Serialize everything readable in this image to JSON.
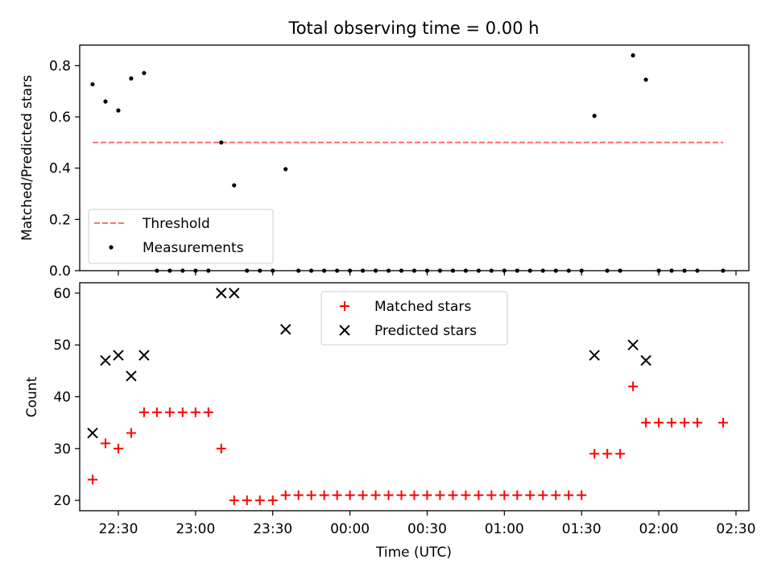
{
  "chart_data": [
    {
      "type": "scatter",
      "title": "Total observing time = 0.00 h",
      "xlabel": "",
      "ylabel": "Matched/Predicted stars",
      "xlim": [
        "22:15",
        "02:35"
      ],
      "ylim": [
        0,
        0.88
      ],
      "yticks": [
        0.0,
        0.2,
        0.4,
        0.6,
        0.8
      ],
      "ytick_labels": [
        "0.0",
        "0.2",
        "0.4",
        "0.6",
        "0.8"
      ],
      "grid": false,
      "legend": {
        "placement": "lower-left",
        "entries": [
          "Threshold",
          "Measurements"
        ]
      },
      "threshold": {
        "name": "Threshold",
        "value": 0.5,
        "x_start": "22:20",
        "x_end": "02:25",
        "color": "#ff7070",
        "style": "dashed"
      },
      "series": [
        {
          "name": "Measurements",
          "color": "#000000",
          "marker": "dot",
          "points": [
            [
              "22:20",
              0.727
            ],
            [
              "22:25",
              0.66
            ],
            [
              "22:30",
              0.625
            ],
            [
              "22:35",
              0.75
            ],
            [
              "22:40",
              0.771
            ],
            [
              "22:45",
              0
            ],
            [
              "22:50",
              0
            ],
            [
              "22:55",
              0
            ],
            [
              "23:00",
              0
            ],
            [
              "23:05",
              0
            ],
            [
              "23:10",
              0.5
            ],
            [
              "23:15",
              0.333
            ],
            [
              "23:20",
              0
            ],
            [
              "23:25",
              0
            ],
            [
              "23:30",
              0
            ],
            [
              "23:35",
              0.396
            ],
            [
              "23:40",
              0
            ],
            [
              "23:45",
              0
            ],
            [
              "23:50",
              0
            ],
            [
              "23:55",
              0
            ],
            [
              "00:00",
              0
            ],
            [
              "00:05",
              0
            ],
            [
              "00:10",
              0
            ],
            [
              "00:15",
              0
            ],
            [
              "00:20",
              0
            ],
            [
              "00:25",
              0
            ],
            [
              "00:30",
              0
            ],
            [
              "00:35",
              0
            ],
            [
              "00:40",
              0
            ],
            [
              "00:45",
              0
            ],
            [
              "00:50",
              0
            ],
            [
              "00:55",
              0
            ],
            [
              "01:00",
              0
            ],
            [
              "01:05",
              0
            ],
            [
              "01:10",
              0
            ],
            [
              "01:15",
              0
            ],
            [
              "01:20",
              0
            ],
            [
              "01:25",
              0
            ],
            [
              "01:30",
              0
            ],
            [
              "01:35",
              0.604
            ],
            [
              "01:40",
              0
            ],
            [
              "01:45",
              0
            ],
            [
              "01:50",
              0.84
            ],
            [
              "01:55",
              0.745
            ],
            [
              "02:00",
              0
            ],
            [
              "02:05",
              0
            ],
            [
              "02:10",
              0
            ],
            [
              "02:15",
              0
            ],
            [
              "02:25",
              0
            ]
          ]
        }
      ]
    },
    {
      "type": "scatter",
      "title": "",
      "xlabel": "Time (UTC)",
      "ylabel": "Count",
      "xlim": [
        "22:15",
        "02:35"
      ],
      "ylim": [
        18,
        62
      ],
      "xticks": [
        "22:30",
        "23:00",
        "23:30",
        "00:00",
        "00:30",
        "01:00",
        "01:30",
        "02:00",
        "02:30"
      ],
      "yticks": [
        20,
        30,
        40,
        50,
        60
      ],
      "ytick_labels": [
        "20",
        "30",
        "40",
        "50",
        "60"
      ],
      "grid": false,
      "legend": {
        "placement": "upper-center",
        "entries": [
          "Matched stars",
          "Predicted stars"
        ]
      },
      "series": [
        {
          "name": "Matched stars",
          "color": "#ff0000",
          "marker": "plus",
          "points": [
            [
              "22:20",
              24
            ],
            [
              "22:25",
              31
            ],
            [
              "22:30",
              30
            ],
            [
              "22:35",
              33
            ],
            [
              "22:40",
              37
            ],
            [
              "22:45",
              37
            ],
            [
              "22:50",
              37
            ],
            [
              "22:55",
              37
            ],
            [
              "23:00",
              37
            ],
            [
              "23:05",
              37
            ],
            [
              "23:10",
              30
            ],
            [
              "23:15",
              20
            ],
            [
              "23:20",
              20
            ],
            [
              "23:25",
              20
            ],
            [
              "23:30",
              20
            ],
            [
              "23:35",
              21
            ],
            [
              "23:40",
              21
            ],
            [
              "23:45",
              21
            ],
            [
              "23:50",
              21
            ],
            [
              "23:55",
              21
            ],
            [
              "00:00",
              21
            ],
            [
              "00:05",
              21
            ],
            [
              "00:10",
              21
            ],
            [
              "00:15",
              21
            ],
            [
              "00:20",
              21
            ],
            [
              "00:25",
              21
            ],
            [
              "00:30",
              21
            ],
            [
              "00:35",
              21
            ],
            [
              "00:40",
              21
            ],
            [
              "00:45",
              21
            ],
            [
              "00:50",
              21
            ],
            [
              "00:55",
              21
            ],
            [
              "01:00",
              21
            ],
            [
              "01:05",
              21
            ],
            [
              "01:10",
              21
            ],
            [
              "01:15",
              21
            ],
            [
              "01:20",
              21
            ],
            [
              "01:25",
              21
            ],
            [
              "01:30",
              21
            ],
            [
              "01:35",
              29
            ],
            [
              "01:40",
              29
            ],
            [
              "01:45",
              29
            ],
            [
              "01:50",
              42
            ],
            [
              "01:55",
              35
            ],
            [
              "02:00",
              35
            ],
            [
              "02:05",
              35
            ],
            [
              "02:10",
              35
            ],
            [
              "02:15",
              35
            ],
            [
              "02:25",
              35
            ]
          ]
        },
        {
          "name": "Predicted stars",
          "color": "#000000",
          "marker": "cross",
          "points": [
            [
              "22:20",
              33
            ],
            [
              "22:25",
              47
            ],
            [
              "22:30",
              48
            ],
            [
              "22:35",
              44
            ],
            [
              "22:40",
              48
            ],
            [
              "23:10",
              60
            ],
            [
              "23:15",
              60
            ],
            [
              "23:35",
              53
            ],
            [
              "01:35",
              48
            ],
            [
              "01:50",
              50
            ],
            [
              "01:55",
              47
            ]
          ]
        }
      ]
    }
  ]
}
